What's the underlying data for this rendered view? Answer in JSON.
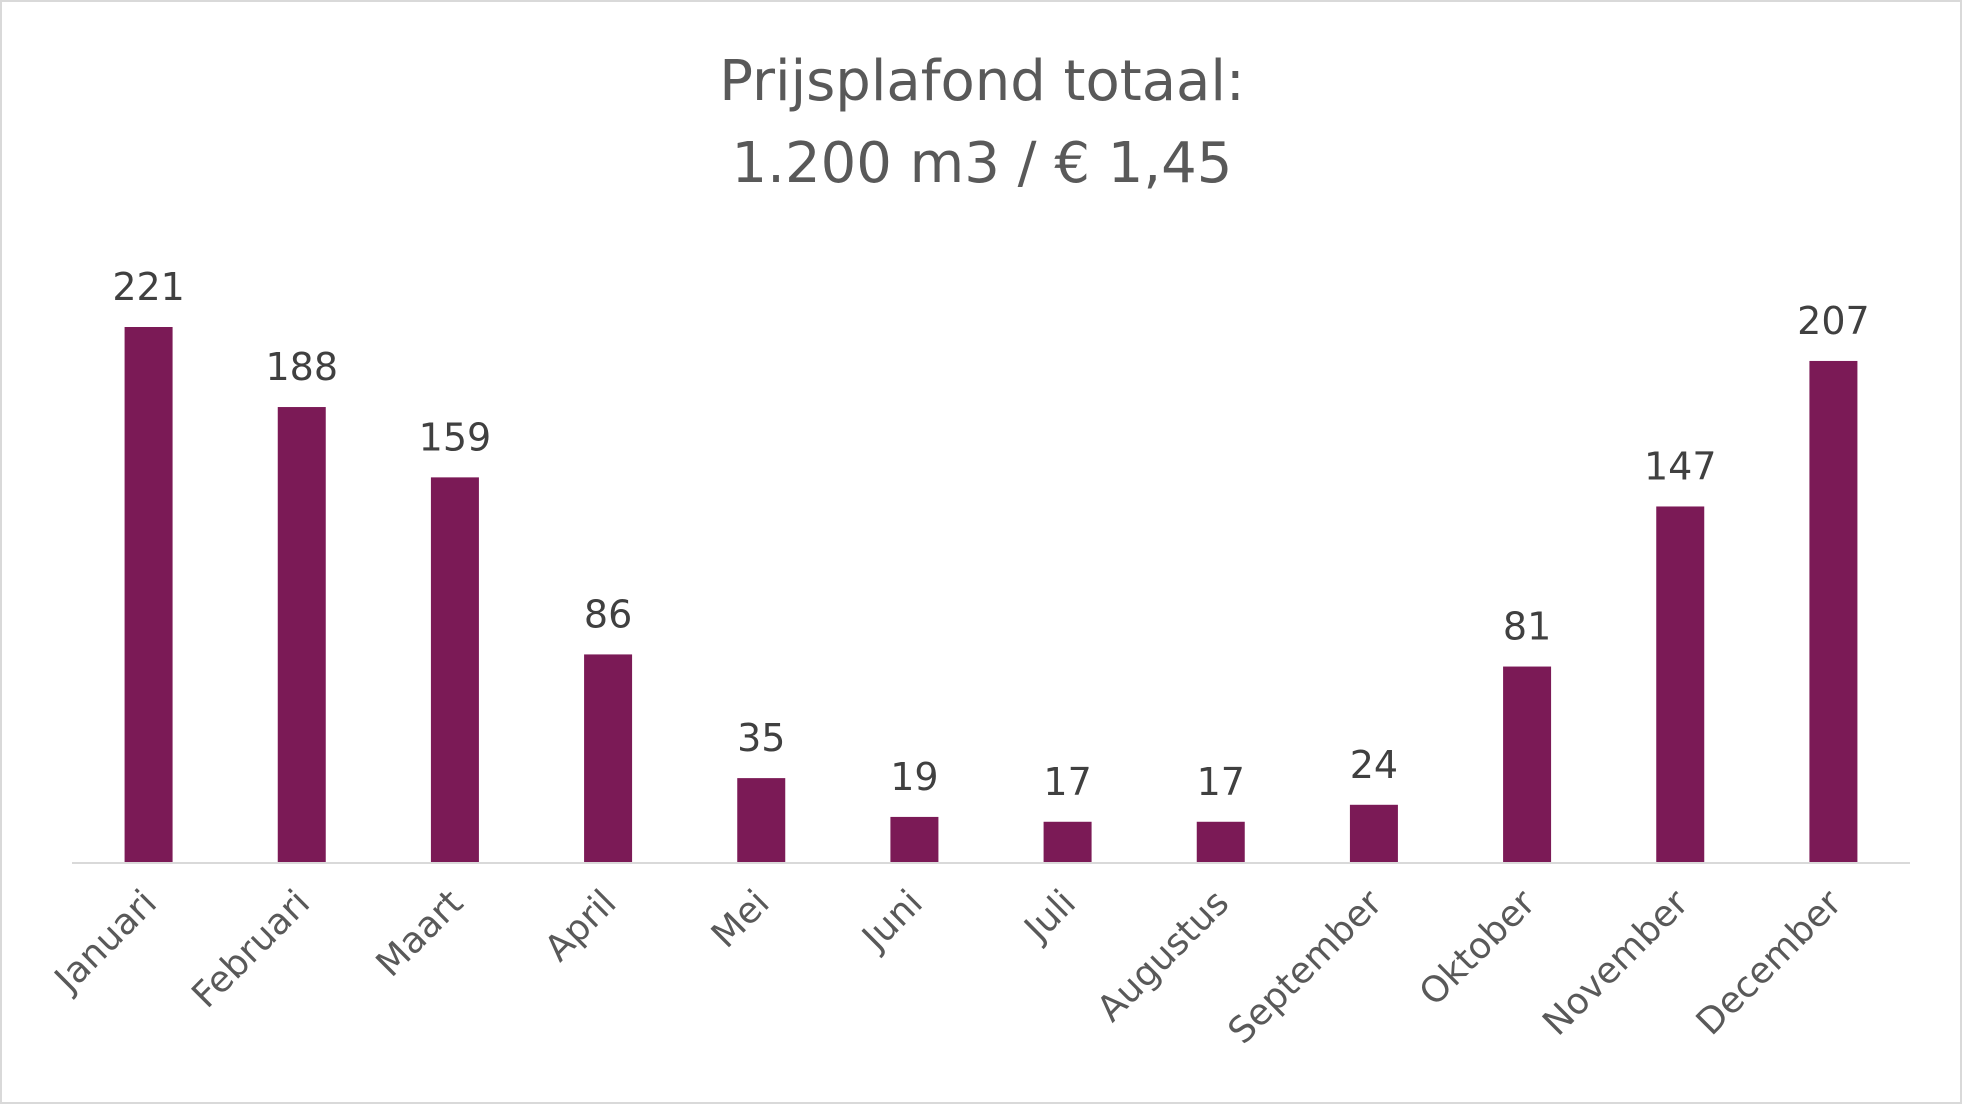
{
  "chart_data": {
    "type": "bar",
    "title": [
      "Prijsplafond totaal:",
      "1.200 m3 / € 1,45"
    ],
    "categories": [
      "Januari",
      "Februari",
      "Maart",
      "April",
      "Mei",
      "Juni",
      "Juli",
      "Augustus",
      "September",
      "Oktober",
      "November",
      "December"
    ],
    "values": [
      221,
      188,
      159,
      86,
      35,
      19,
      17,
      17,
      24,
      81,
      147,
      207
    ],
    "xlabel": "",
    "ylabel": "",
    "ylim": [
      0,
      221
    ],
    "grid": false,
    "legend": "none",
    "colors": {
      "bar": "#7b1a56",
      "axis": "#d9d9d9"
    }
  }
}
